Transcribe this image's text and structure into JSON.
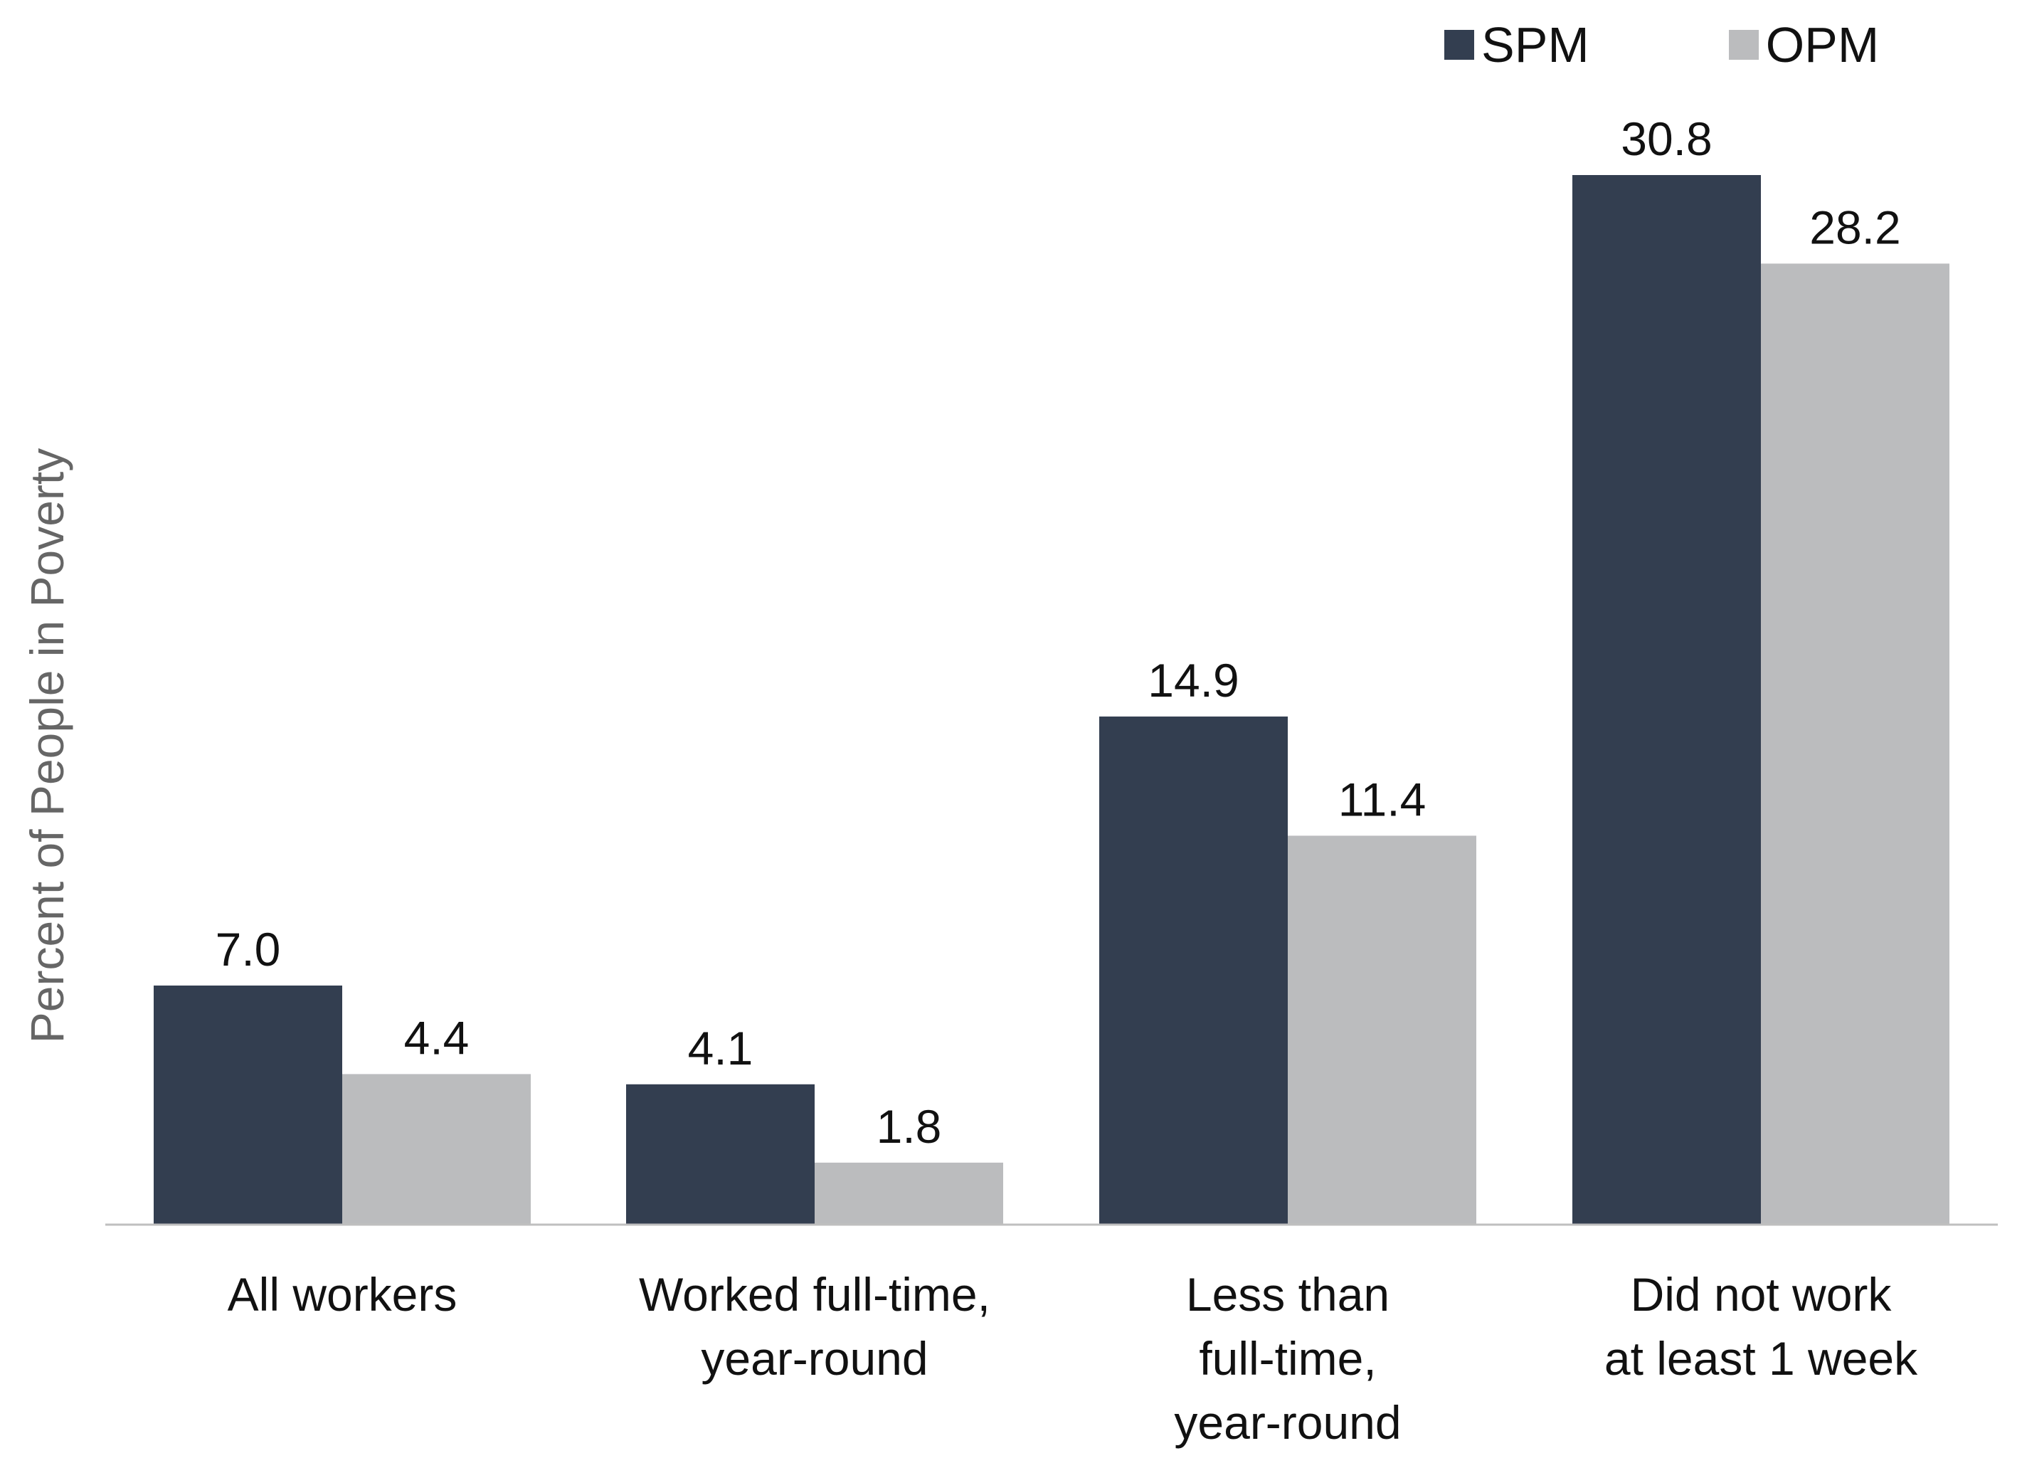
{
  "chart_data": {
    "type": "bar",
    "categories": [
      [
        "All workers"
      ],
      [
        "Worked full-time,",
        "year-round"
      ],
      [
        "Less than",
        "full-time,",
        "year-round"
      ],
      [
        "Did not work",
        "at least 1 week"
      ]
    ],
    "series": [
      {
        "name": "SPM",
        "color": "#333E50",
        "values": [
          7.0,
          4.1,
          14.9,
          30.8
        ],
        "labels": [
          "7.0",
          "4.1",
          "14.9",
          "30.8"
        ]
      },
      {
        "name": "OPM",
        "color": "#BBBCBE",
        "values": [
          4.4,
          1.8,
          11.4,
          28.2
        ],
        "labels": [
          "4.4",
          "1.8",
          "11.4",
          "28.2"
        ]
      }
    ],
    "ylabel": "Percent of People in Poverty",
    "xlabel": "",
    "ylim": [
      0,
      30.8
    ],
    "grid": false,
    "legend_position": "top-right",
    "colors": {
      "axis": "#BFBFBF",
      "text": "#111111",
      "ylabel": "#666666"
    }
  }
}
